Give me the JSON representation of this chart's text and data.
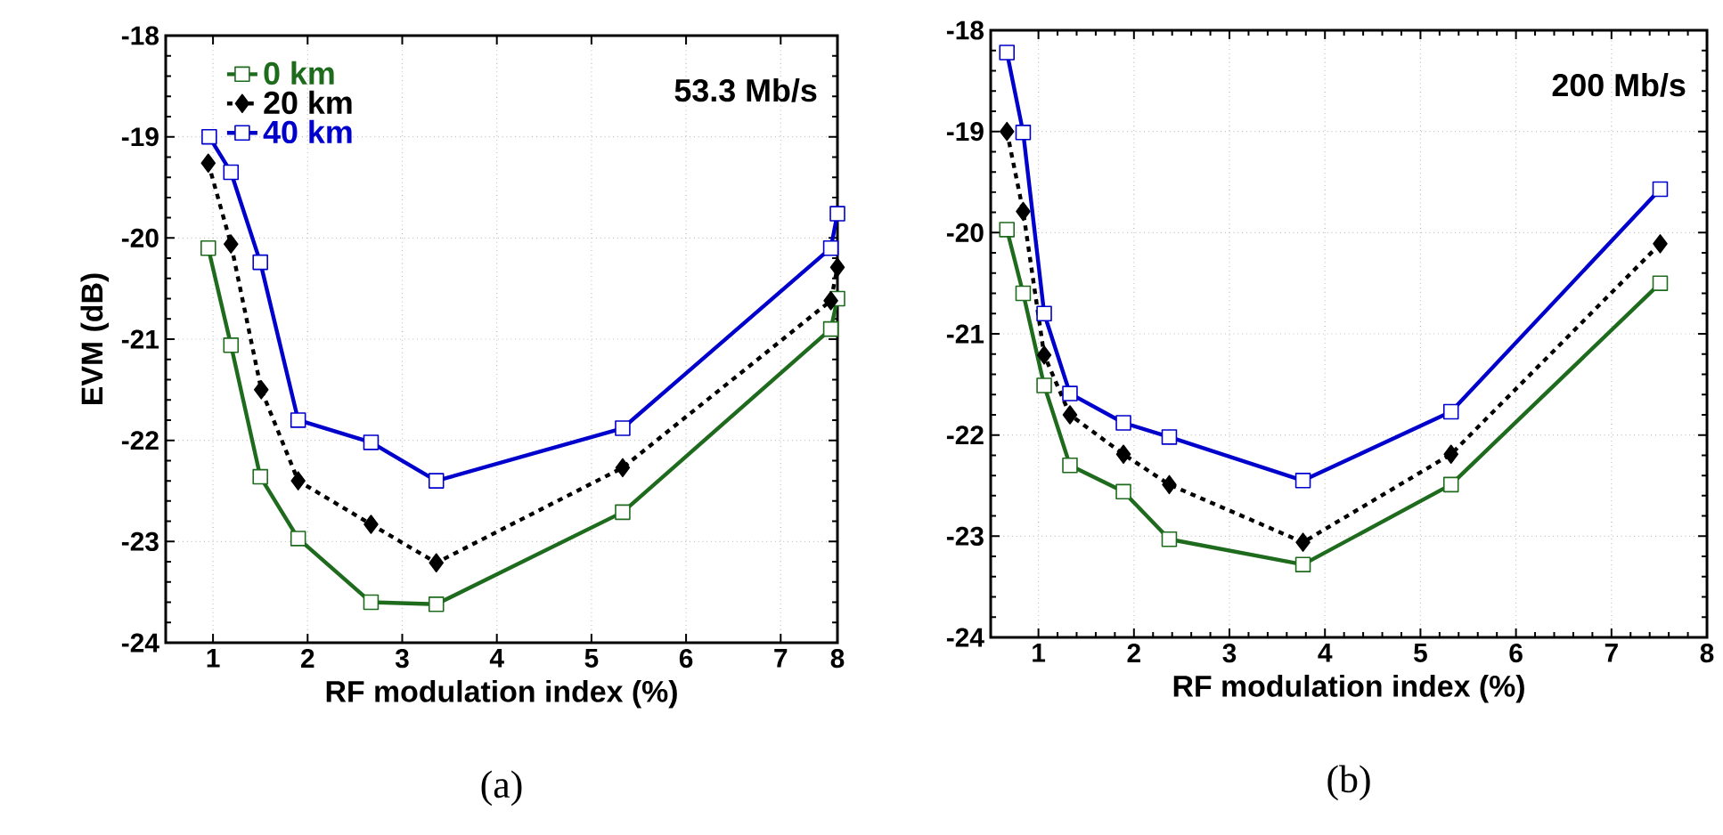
{
  "chart_data": [
    {
      "type": "line",
      "xlabel": "RF modulation index (%)",
      "ylabel": "EVM (dB)",
      "xlim": [
        0.5,
        7.6
      ],
      "xticks": [
        1,
        2,
        3,
        4,
        5,
        6,
        7,
        {
          "value": 7.6,
          "label": "8"
        }
      ],
      "ylim": [
        -24,
        -18
      ],
      "yticks": [
        -24,
        -23,
        -22,
        -21,
        -20,
        -19,
        -18
      ],
      "grid": true,
      "legend": "top left",
      "annotations": [
        "53.3 Mb/s",
        "(a)"
      ],
      "series": [
        {
          "name": "0 km",
          "color": "#1e6b1e",
          "marker": "square",
          "line_style": "solid",
          "x": [
            0.95,
            1.19,
            1.5,
            1.9,
            2.67,
            3.36,
            5.33,
            7.53,
            7.6
          ],
          "values": [
            -20.1,
            -21.06,
            -22.36,
            -22.97,
            -23.6,
            -23.62,
            -22.71,
            -20.9,
            -20.6
          ]
        },
        {
          "name": "20 km",
          "color": "#000000",
          "marker": "diamond",
          "line_style": "dashed",
          "x": [
            0.95,
            1.19,
            1.51,
            1.9,
            2.67,
            3.36,
            5.33,
            7.53,
            7.6
          ],
          "values": [
            -19.26,
            -20.06,
            -21.5,
            -22.4,
            -22.83,
            -23.21,
            -22.27,
            -20.62,
            -20.29
          ]
        },
        {
          "name": "40 km",
          "color": "#0000cc",
          "marker": "square",
          "line_style": "solid",
          "x": [
            0.96,
            1.19,
            1.5,
            1.9,
            2.67,
            3.36,
            5.33,
            7.53,
            7.6
          ],
          "values": [
            -19.0,
            -19.35,
            -20.24,
            -21.8,
            -22.02,
            -22.4,
            -21.88,
            -20.1,
            -19.76
          ]
        }
      ]
    },
    {
      "type": "line",
      "xlabel": "RF modulation index (%)",
      "xlim": [
        0.5,
        8
      ],
      "xticks": [
        1,
        2,
        3,
        4,
        5,
        6,
        7,
        8
      ],
      "ylim": [
        -24,
        -18
      ],
      "yticks": [
        -24,
        -23,
        -22,
        -21,
        -20,
        -19,
        -18
      ],
      "grid": true,
      "annotations": [
        "200 Mb/s",
        "(b)"
      ],
      "series": [
        {
          "color": "#1e6b1e",
          "marker": "square",
          "line_style": "solid",
          "x": [
            0.67,
            0.84,
            1.06,
            1.33,
            1.89,
            2.37,
            3.77,
            5.32,
            7.51
          ],
          "values": [
            -19.97,
            -20.6,
            -21.51,
            -22.3,
            -22.56,
            -23.03,
            -23.28,
            -22.49,
            -20.5
          ]
        },
        {
          "color": "#000000",
          "marker": "diamond",
          "line_style": "dashed",
          "x": [
            0.67,
            0.84,
            1.06,
            1.33,
            1.89,
            2.37,
            3.77,
            5.32,
            7.51
          ],
          "values": [
            -19.0,
            -19.79,
            -21.21,
            -21.8,
            -22.19,
            -22.49,
            -23.06,
            -22.19,
            -20.11
          ]
        },
        {
          "color": "#0000cc",
          "marker": "square",
          "line_style": "solid",
          "x": [
            0.67,
            0.84,
            1.06,
            1.33,
            1.89,
            2.37,
            3.77,
            5.32,
            7.51
          ],
          "values": [
            -18.22,
            -19.01,
            -20.8,
            -21.59,
            -21.88,
            -22.02,
            -22.45,
            -21.77,
            -19.57
          ]
        }
      ]
    }
  ]
}
